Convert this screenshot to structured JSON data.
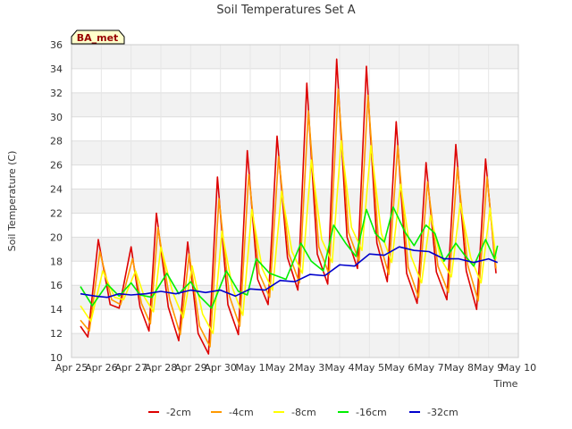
{
  "chart_data": {
    "type": "line",
    "title": "Soil Temperatures Set A",
    "xlabel": "Time",
    "ylabel": "Soil Temperature (C)",
    "tag_label": "BA_met",
    "ylim": [
      10,
      36
    ],
    "yticks": [
      10,
      12,
      14,
      16,
      18,
      20,
      22,
      24,
      26,
      28,
      30,
      32,
      34,
      36
    ],
    "xlim": [
      0,
      15
    ],
    "xtick_labels": [
      "Apr 25",
      "Apr 26",
      "Apr 27",
      "Apr 28",
      "Apr 29",
      "Apr 30",
      "May 1",
      "May 2",
      "May 3",
      "May 4",
      "May 5",
      "May 6",
      "May 7",
      "May 8",
      "May 9",
      "May 10"
    ],
    "x_note": "x values are days since Apr 25 00:00",
    "grid": true,
    "legend_position": "bottom",
    "series": [
      {
        "name": "-2cm",
        "color": "#dd0000",
        "x": [
          0.3,
          0.55,
          0.9,
          1.3,
          1.6,
          2.0,
          2.3,
          2.6,
          2.85,
          3.25,
          3.6,
          3.9,
          4.25,
          4.6,
          4.9,
          5.25,
          5.6,
          5.9,
          6.25,
          6.6,
          6.9,
          7.25,
          7.6,
          7.9,
          8.25,
          8.6,
          8.9,
          9.25,
          9.6,
          9.9,
          10.25,
          10.6,
          10.9,
          11.25,
          11.6,
          11.9,
          12.25,
          12.6,
          12.9,
          13.25,
          13.6,
          13.9,
          14.25
        ],
        "y": [
          12.6,
          11.7,
          19.8,
          14.4,
          14.1,
          19.2,
          14.2,
          12.2,
          22.0,
          14.2,
          11.4,
          19.6,
          12.0,
          10.3,
          25.0,
          14.4,
          11.9,
          27.2,
          16.5,
          14.4,
          28.4,
          18.3,
          15.6,
          32.8,
          18.6,
          16.1,
          34.8,
          20.0,
          17.4,
          34.2,
          19.5,
          16.3,
          29.6,
          17.0,
          14.5,
          26.2,
          17.1,
          14.8,
          27.7,
          17.2,
          14.0,
          26.5,
          17.0
        ]
      },
      {
        "name": "-4cm",
        "color": "#ff9900",
        "x": [
          0.3,
          0.6,
          0.95,
          1.35,
          1.65,
          2.05,
          2.35,
          2.65,
          2.9,
          3.3,
          3.65,
          3.95,
          4.3,
          4.65,
          4.95,
          5.3,
          5.65,
          5.95,
          6.3,
          6.65,
          6.95,
          7.3,
          7.65,
          7.95,
          8.3,
          8.65,
          8.95,
          9.3,
          9.65,
          9.95,
          10.3,
          10.65,
          10.95,
          11.3,
          11.65,
          11.95,
          12.3,
          12.65,
          12.95,
          13.3,
          13.65,
          13.95,
          14.25
        ],
        "y": [
          13.1,
          12.2,
          18.8,
          14.8,
          14.4,
          18.2,
          14.5,
          12.8,
          20.8,
          14.8,
          11.9,
          18.6,
          12.6,
          10.9,
          23.2,
          15.1,
          12.6,
          25.2,
          17.0,
          15.0,
          26.7,
          18.6,
          16.2,
          30.5,
          19.2,
          16.9,
          32.3,
          20.4,
          18.0,
          31.8,
          19.9,
          16.9,
          27.6,
          17.5,
          15.0,
          24.6,
          17.6,
          15.4,
          25.8,
          17.7,
          14.7,
          25.0,
          17.4
        ]
      },
      {
        "name": "-8cm",
        "color": "#ffff00",
        "x": [
          0.3,
          0.65,
          1.05,
          1.45,
          1.75,
          2.15,
          2.45,
          2.75,
          3.0,
          3.4,
          3.75,
          4.05,
          4.4,
          4.75,
          5.05,
          5.4,
          5.75,
          6.05,
          6.4,
          6.75,
          7.05,
          7.4,
          7.75,
          8.05,
          8.4,
          8.75,
          9.05,
          9.4,
          9.75,
          10.05,
          10.4,
          10.75,
          11.05,
          11.4,
          11.75,
          12.05,
          12.4,
          12.75,
          13.05,
          13.4,
          13.75,
          14.05,
          14.25
        ],
        "y": [
          14.3,
          13.0,
          17.2,
          15.0,
          14.8,
          17.2,
          15.0,
          13.8,
          19.2,
          15.4,
          13.3,
          17.6,
          13.6,
          12.0,
          20.5,
          15.8,
          13.5,
          22.3,
          17.4,
          15.6,
          23.8,
          18.8,
          17.0,
          26.4,
          19.8,
          17.9,
          28.0,
          20.8,
          18.9,
          27.6,
          20.3,
          17.9,
          24.4,
          18.4,
          16.2,
          21.8,
          18.2,
          16.7,
          22.8,
          18.3,
          16.2,
          22.4,
          18.2
        ]
      },
      {
        "name": "-16cm",
        "color": "#00ee00",
        "x": [
          0.3,
          0.7,
          1.2,
          1.6,
          2.0,
          2.3,
          2.7,
          3.2,
          3.6,
          4.0,
          4.3,
          4.7,
          5.2,
          5.6,
          5.9,
          6.2,
          6.65,
          7.2,
          7.7,
          8.05,
          8.45,
          8.8,
          9.2,
          9.55,
          9.9,
          10.2,
          10.5,
          10.8,
          11.2,
          11.5,
          11.9,
          12.2,
          12.5,
          12.9,
          13.2,
          13.5,
          13.9,
          14.2,
          14.3
        ],
        "y": [
          15.9,
          14.3,
          16.1,
          15.1,
          16.2,
          15.2,
          15.0,
          17.0,
          15.3,
          16.3,
          15.1,
          14.1,
          17.2,
          15.5,
          15.2,
          18.2,
          17.0,
          16.5,
          19.5,
          18.0,
          17.2,
          21.0,
          19.5,
          18.4,
          22.3,
          20.3,
          19.6,
          22.5,
          20.4,
          19.3,
          21.0,
          20.3,
          18.0,
          19.5,
          18.5,
          17.6,
          19.8,
          18.2,
          19.3
        ]
      },
      {
        "name": "-32cm",
        "color": "#0000cc",
        "x": [
          0.3,
          0.8,
          1.2,
          1.6,
          2.0,
          2.5,
          3.0,
          3.5,
          4.0,
          4.5,
          5.0,
          5.5,
          6.0,
          6.5,
          7.0,
          7.5,
          8.0,
          8.5,
          9.0,
          9.5,
          10.0,
          10.5,
          11.0,
          11.5,
          12.0,
          12.5,
          13.0,
          13.5,
          14.0,
          14.3
        ],
        "y": [
          15.3,
          15.1,
          15.0,
          15.3,
          15.2,
          15.3,
          15.5,
          15.3,
          15.6,
          15.4,
          15.6,
          15.1,
          15.7,
          15.6,
          16.4,
          16.3,
          16.9,
          16.8,
          17.7,
          17.6,
          18.6,
          18.5,
          19.2,
          18.9,
          18.8,
          18.2,
          18.2,
          17.9,
          18.2,
          17.9
        ]
      }
    ]
  }
}
